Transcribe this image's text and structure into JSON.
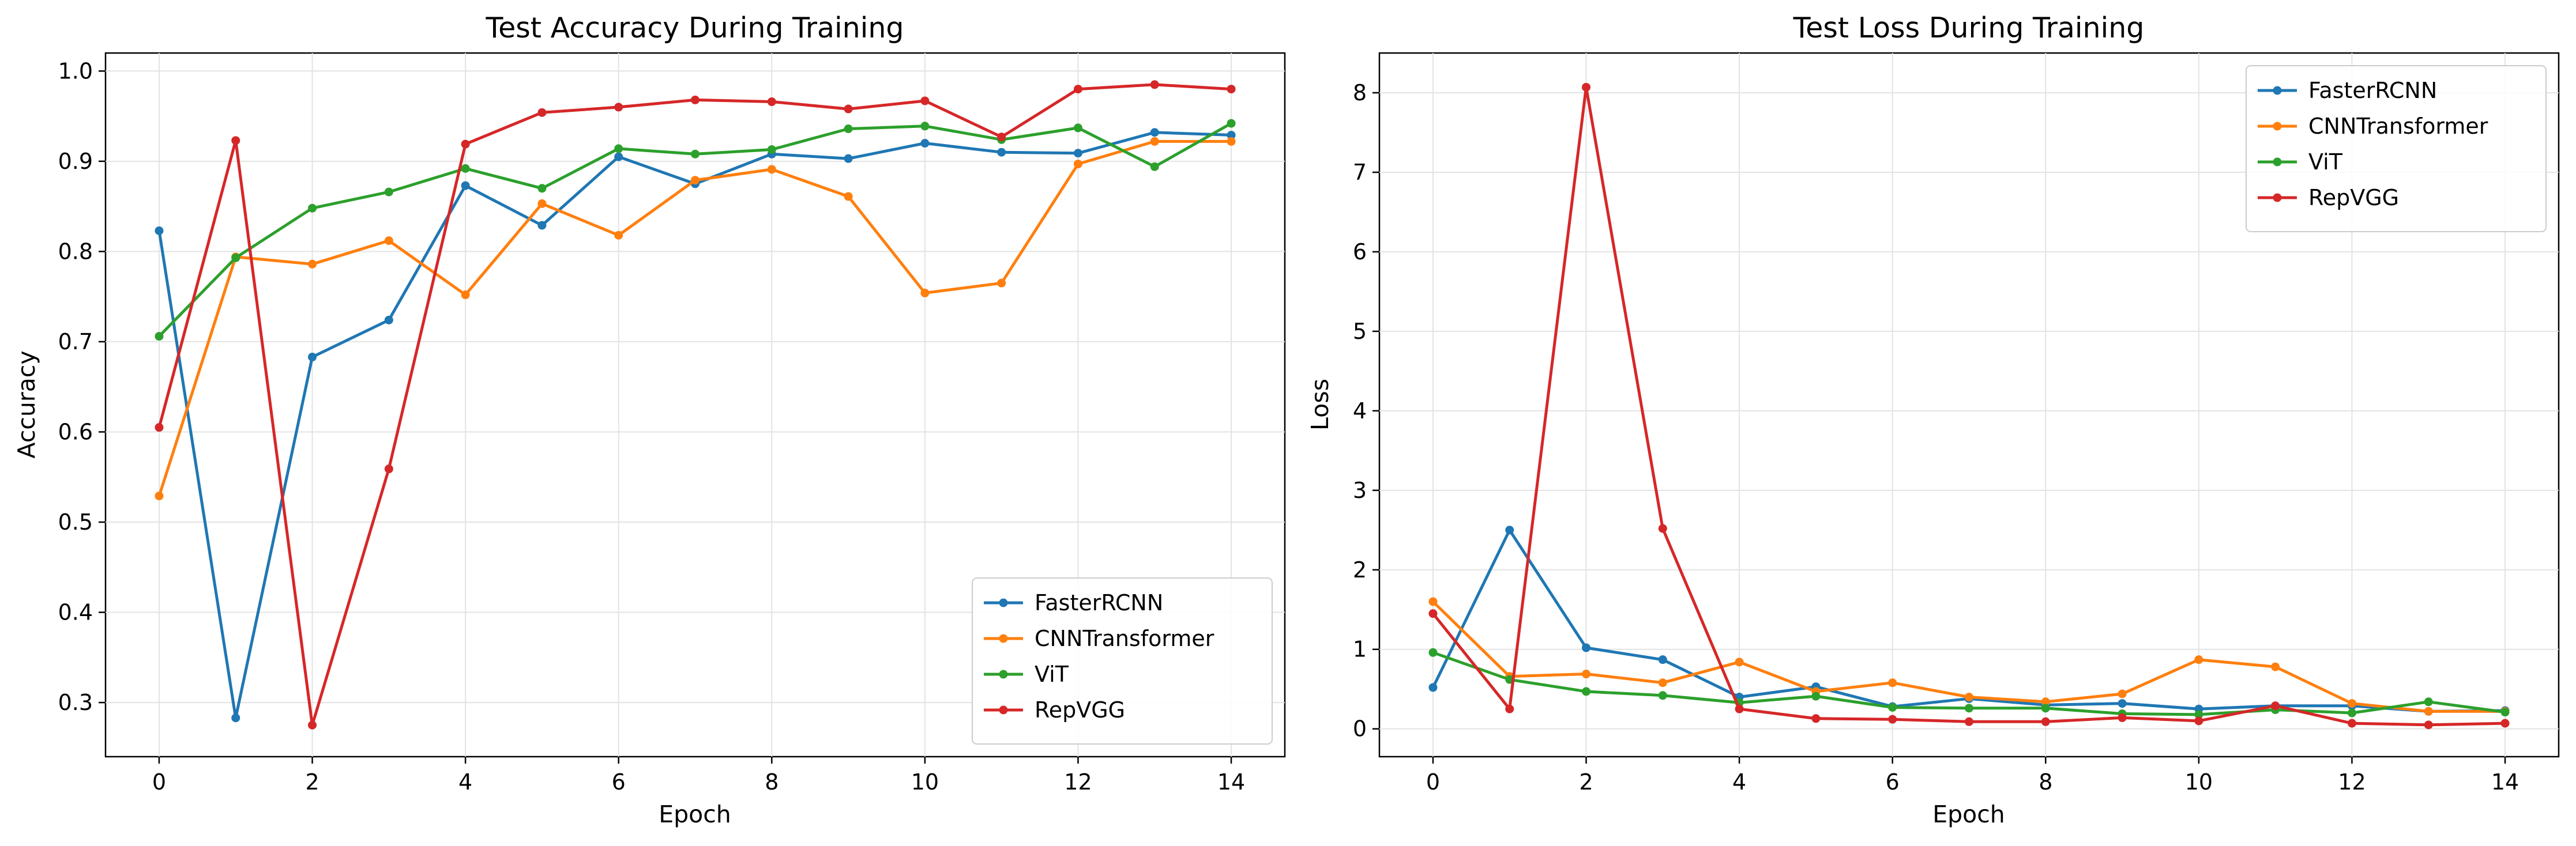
{
  "chart_data": [
    {
      "type": "line",
      "title": "Test Accuracy During Training",
      "xlabel": "Epoch",
      "ylabel": "Accuracy",
      "xlim": [
        -0.7,
        14.7
      ],
      "ylim": [
        0.24,
        1.02
      ],
      "xticks": [
        0,
        2,
        4,
        6,
        8,
        10,
        12,
        14
      ],
      "yticks": [
        0.3,
        0.4,
        0.5,
        0.6,
        0.7,
        0.8,
        0.9,
        1.0
      ],
      "ytick_labels": [
        "0.3",
        "0.4",
        "0.5",
        "0.6",
        "0.7",
        "0.8",
        "0.9",
        "1.0"
      ],
      "grid": true,
      "legend_position": "lower-right",
      "x": [
        0,
        1,
        2,
        3,
        4,
        5,
        6,
        7,
        8,
        9,
        10,
        11,
        12,
        13,
        14
      ],
      "series": [
        {
          "name": "FasterRCNN",
          "color": "#1f77b4",
          "values": [
            0.823,
            0.283,
            0.683,
            0.724,
            0.873,
            0.829,
            0.905,
            0.875,
            0.908,
            0.903,
            0.92,
            0.91,
            0.909,
            0.932,
            0.929
          ]
        },
        {
          "name": "CNNTransformer",
          "color": "#ff7f0e",
          "values": [
            0.529,
            0.794,
            0.786,
            0.812,
            0.752,
            0.853,
            0.818,
            0.879,
            0.891,
            0.861,
            0.754,
            0.765,
            0.897,
            0.922,
            0.922
          ]
        },
        {
          "name": "ViT",
          "color": "#2ca02c",
          "values": [
            0.706,
            0.793,
            0.848,
            0.866,
            0.892,
            0.87,
            0.914,
            0.908,
            0.913,
            0.936,
            0.939,
            0.924,
            0.937,
            0.894,
            0.942
          ]
        },
        {
          "name": "RepVGG",
          "color": "#d62728",
          "values": [
            0.605,
            0.923,
            0.275,
            0.559,
            0.919,
            0.954,
            0.96,
            0.968,
            0.966,
            0.958,
            0.967,
            0.927,
            0.98,
            0.985,
            0.98
          ]
        }
      ]
    },
    {
      "type": "line",
      "title": "Test Loss During Training",
      "xlabel": "Epoch",
      "ylabel": "Loss",
      "xlim": [
        -0.7,
        14.7
      ],
      "ylim": [
        -0.35,
        8.5
      ],
      "xticks": [
        0,
        2,
        4,
        6,
        8,
        10,
        12,
        14
      ],
      "yticks": [
        0,
        1,
        2,
        3,
        4,
        5,
        6,
        7,
        8
      ],
      "ytick_labels": [
        "0",
        "1",
        "2",
        "3",
        "4",
        "5",
        "6",
        "7",
        "8"
      ],
      "grid": true,
      "legend_position": "upper-right",
      "x": [
        0,
        1,
        2,
        3,
        4,
        5,
        6,
        7,
        8,
        9,
        10,
        11,
        12,
        13,
        14
      ],
      "series": [
        {
          "name": "FasterRCNN",
          "color": "#1f77b4",
          "values": [
            0.52,
            2.5,
            1.02,
            0.87,
            0.4,
            0.53,
            0.28,
            0.38,
            0.3,
            0.32,
            0.25,
            0.29,
            0.29,
            0.22,
            0.23
          ]
        },
        {
          "name": "CNNTransformer",
          "color": "#ff7f0e",
          "values": [
            1.6,
            0.66,
            0.69,
            0.58,
            0.84,
            0.47,
            0.58,
            0.4,
            0.34,
            0.44,
            0.87,
            0.78,
            0.32,
            0.22,
            0.22
          ]
        },
        {
          "name": "ViT",
          "color": "#2ca02c",
          "values": [
            0.96,
            0.62,
            0.47,
            0.42,
            0.33,
            0.41,
            0.27,
            0.26,
            0.26,
            0.19,
            0.18,
            0.24,
            0.2,
            0.34,
            0.21
          ]
        },
        {
          "name": "RepVGG",
          "color": "#d62728",
          "values": [
            1.45,
            0.25,
            8.07,
            2.52,
            0.25,
            0.13,
            0.12,
            0.09,
            0.09,
            0.14,
            0.1,
            0.29,
            0.07,
            0.05,
            0.07
          ]
        }
      ]
    }
  ]
}
